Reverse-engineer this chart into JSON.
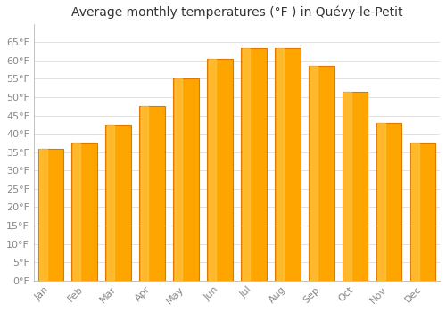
{
  "title": "Average monthly temperatures (°F ) in Quévy-le-Petit",
  "months": [
    "Jan",
    "Feb",
    "Mar",
    "Apr",
    "May",
    "Jun",
    "Jul",
    "Aug",
    "Sep",
    "Oct",
    "Nov",
    "Dec"
  ],
  "values": [
    36,
    37.5,
    42.5,
    47.5,
    55,
    60.5,
    63.5,
    63.5,
    58.5,
    51.5,
    43,
    37.5
  ],
  "bar_color": "#FFA500",
  "bar_edge_color": "#E07800",
  "background_color": "#FFFFFF",
  "plot_bg_color": "#FFFFFF",
  "grid_color": "#DDDDDD",
  "ylim": [
    0,
    70
  ],
  "yticks": [
    0,
    5,
    10,
    15,
    20,
    25,
    30,
    35,
    40,
    45,
    50,
    55,
    60,
    65
  ],
  "title_fontsize": 10,
  "tick_fontsize": 8,
  "tick_color": "#888888",
  "title_color": "#333333"
}
